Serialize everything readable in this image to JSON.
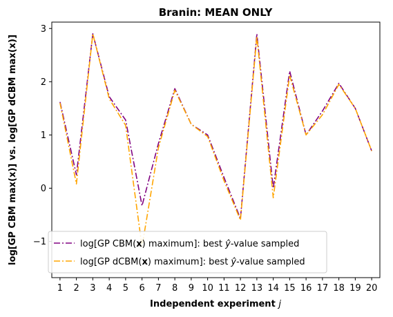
{
  "chart_data": {
    "type": "line",
    "title": "Branin: MEAN ONLY",
    "xlabel": "Independent experiment",
    "xlabel_var": "j",
    "ylabel": "log[GP CBM max(x)] vs. log[GP dCBM max(x)]",
    "x": [
      1,
      2,
      3,
      4,
      5,
      6,
      7,
      8,
      9,
      10,
      11,
      12,
      13,
      14,
      15,
      16,
      17,
      18,
      19,
      20
    ],
    "xlim": [
      0.5,
      20.5
    ],
    "ylim": [
      -1.68,
      3.12
    ],
    "yticks": [
      -1,
      0,
      1,
      2,
      3
    ],
    "grid": false,
    "legend_position": "lower-left",
    "series": [
      {
        "name": "log[GP CBM(x) maximum]: best ŷ-value sampled",
        "legend": {
          "pre": "log[GP CBM(",
          "bold": "x",
          "mid": ") maximum]: best ",
          "yhat": "ŷ",
          "post": "-value sampled"
        },
        "color": "#800080",
        "values": [
          1.62,
          0.25,
          2.9,
          1.72,
          1.28,
          -0.33,
          0.84,
          1.87,
          1.2,
          1.0,
          0.2,
          -0.57,
          2.9,
          0.0,
          2.2,
          1.0,
          1.45,
          1.97,
          1.5,
          0.7
        ]
      },
      {
        "name": "log[GP dCBM(x) maximum]: best ŷ-value sampled",
        "legend": {
          "pre": "log[GP dCBM(",
          "bold": "x",
          "mid": ") maximum]: best ",
          "yhat": "ŷ",
          "post": "-value sampled"
        },
        "color": "#FFA500",
        "values": [
          1.6,
          0.08,
          2.9,
          1.68,
          1.18,
          -1.1,
          0.76,
          1.84,
          1.2,
          0.97,
          0.14,
          -0.6,
          2.85,
          -0.18,
          2.12,
          1.0,
          1.38,
          1.95,
          1.5,
          0.7
        ]
      }
    ]
  }
}
